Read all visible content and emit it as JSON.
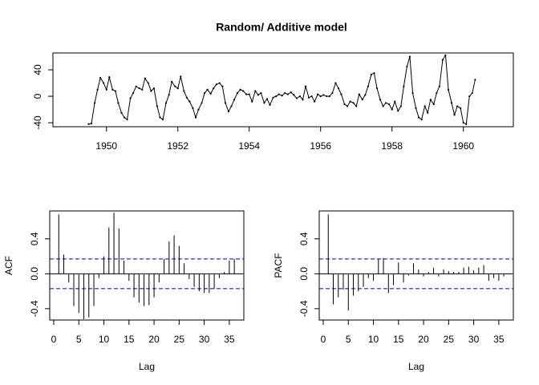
{
  "chart_data": [
    {
      "type": "line",
      "title": "Random/ Additive model",
      "color": "#000000",
      "x": [
        1949.5,
        1949.58,
        1949.67,
        1949.75,
        1949.83,
        1949.92,
        1950,
        1950.08,
        1950.17,
        1950.25,
        1950.33,
        1950.42,
        1950.5,
        1950.58,
        1950.67,
        1950.75,
        1950.83,
        1950.92,
        1951,
        1951.08,
        1951.17,
        1951.25,
        1951.33,
        1951.42,
        1951.5,
        1951.58,
        1951.67,
        1951.75,
        1951.83,
        1951.92,
        1952,
        1952.08,
        1952.17,
        1952.25,
        1952.33,
        1952.42,
        1952.5,
        1952.58,
        1952.67,
        1952.75,
        1952.83,
        1952.92,
        1953,
        1953.08,
        1953.17,
        1953.25,
        1953.33,
        1953.42,
        1953.5,
        1953.58,
        1953.67,
        1953.75,
        1953.83,
        1953.92,
        1954,
        1954.08,
        1954.17,
        1954.25,
        1954.33,
        1954.42,
        1954.5,
        1954.58,
        1954.67,
        1954.75,
        1954.83,
        1954.92,
        1955,
        1955.08,
        1955.17,
        1955.25,
        1955.33,
        1955.42,
        1955.5,
        1955.58,
        1955.67,
        1955.75,
        1955.83,
        1955.92,
        1956,
        1956.08,
        1956.17,
        1956.25,
        1956.33,
        1956.42,
        1956.5,
        1956.58,
        1956.67,
        1956.75,
        1956.83,
        1956.92,
        1957,
        1957.08,
        1957.17,
        1957.25,
        1957.33,
        1957.42,
        1957.5,
        1957.58,
        1957.67,
        1957.75,
        1957.83,
        1957.92,
        1958,
        1958.08,
        1958.17,
        1958.25,
        1958.33,
        1958.42,
        1958.5,
        1958.58,
        1958.67,
        1958.75,
        1958.83,
        1958.92,
        1959,
        1959.08,
        1959.17,
        1959.25,
        1959.33,
        1959.42,
        1959.5,
        1959.58,
        1959.67,
        1959.75,
        1959.83,
        1959.92,
        1960,
        1960.08,
        1960.17,
        1960.25,
        1960.33
      ],
      "values": [
        -42,
        -41,
        -10,
        10,
        28,
        20,
        10,
        29,
        10,
        8,
        -10,
        -25,
        -32,
        -35,
        -3,
        5,
        15,
        12,
        10,
        27,
        20,
        8,
        12,
        -15,
        -32,
        -35,
        -10,
        2,
        22,
        15,
        12,
        30,
        8,
        -2,
        -8,
        -18,
        -32,
        -20,
        -10,
        5,
        10,
        4,
        12,
        18,
        20,
        15,
        -10,
        -23,
        -15,
        -5,
        5,
        10,
        8,
        3,
        3,
        -8,
        8,
        2,
        5,
        -10,
        -4,
        -13,
        -2,
        0,
        3,
        1,
        5,
        3,
        6,
        2,
        -3,
        0,
        -5,
        15,
        -2,
        0,
        -8,
        3,
        0,
        2,
        0,
        0,
        5,
        20,
        12,
        3,
        -12,
        -15,
        -8,
        -10,
        -15,
        3,
        -5,
        2,
        15,
        33,
        35,
        12,
        -5,
        -15,
        -10,
        -12,
        -20,
        -8,
        -22,
        -15,
        15,
        45,
        60,
        5,
        -18,
        -32,
        -35,
        -15,
        -25,
        -5,
        -12,
        5,
        15,
        55,
        62,
        10,
        -10,
        -28,
        -15,
        -18,
        -40,
        -42,
        0,
        5,
        25
      ],
      "xlim": [
        1948.5,
        1961.4
      ],
      "xticks": [
        1950,
        1952,
        1954,
        1956,
        1958,
        1960
      ],
      "ylim": [
        -46,
        65.5
      ],
      "yticks": [
        -40,
        0,
        40
      ]
    },
    {
      "type": "acf",
      "y_label": "ACF",
      "x_label": "Lag",
      "color": "#000000",
      "ci_color": "#0000cc",
      "x": [
        1,
        2,
        3,
        4,
        5,
        6,
        7,
        8,
        9,
        10,
        11,
        12,
        13,
        14,
        15,
        16,
        17,
        18,
        19,
        20,
        21,
        22,
        23,
        24,
        25,
        26,
        27,
        28,
        29,
        30,
        31,
        32,
        33,
        34,
        35,
        36
      ],
      "values": [
        0.68,
        0.22,
        -0.1,
        -0.37,
        -0.45,
        -0.52,
        -0.5,
        -0.37,
        -0.05,
        0.2,
        0.53,
        0.7,
        0.52,
        0.15,
        -0.08,
        -0.27,
        -0.33,
        -0.37,
        -0.36,
        -0.27,
        -0.1,
        0.17,
        0.37,
        0.44,
        0.32,
        0.12,
        -0.06,
        -0.15,
        -0.2,
        -0.22,
        -0.22,
        -0.17,
        -0.05,
        0.02,
        0.15,
        0.17
      ],
      "ci": [
        -0.17,
        0.17
      ],
      "xlim": [
        -0.8,
        37.9
      ],
      "xticks": [
        0,
        5,
        10,
        15,
        20,
        25,
        30,
        35
      ],
      "ylim": [
        -0.53,
        0.72
      ],
      "yticks": [
        -0.4,
        {
          "value": 0,
          "label": "0.0"
        },
        0.4
      ]
    },
    {
      "type": "acf",
      "y_label": "PACF",
      "x_label": "Lag",
      "color": "#000000",
      "ci_color": "#0000cc",
      "x": [
        1,
        2,
        3,
        4,
        5,
        6,
        7,
        8,
        9,
        10,
        11,
        12,
        13,
        14,
        15,
        16,
        17,
        18,
        19,
        20,
        21,
        22,
        23,
        24,
        25,
        26,
        27,
        28,
        29,
        30,
        31,
        32,
        33,
        34,
        35,
        36
      ],
      "values": [
        0.68,
        -0.35,
        -0.27,
        -0.18,
        -0.42,
        -0.25,
        -0.2,
        -0.15,
        -0.05,
        -0.08,
        0.17,
        0.18,
        -0.22,
        -0.13,
        0.13,
        -0.1,
        -0.02,
        0.12,
        0.05,
        -0.03,
        0.02,
        0.07,
        -0.03,
        0.05,
        0.03,
        0.02,
        0.02,
        0.07,
        0.08,
        0.04,
        0.07,
        0.1,
        -0.08,
        -0.05,
        -0.08,
        -0.03
      ],
      "ci": [
        -0.17,
        0.17
      ],
      "xlim": [
        -0.8,
        37.9
      ],
      "xticks": [
        0,
        5,
        10,
        15,
        20,
        25,
        30,
        35
      ],
      "ylim": [
        -0.53,
        0.72
      ],
      "yticks": [
        -0.4,
        {
          "value": 0,
          "label": "0.0"
        },
        0.4
      ]
    }
  ]
}
